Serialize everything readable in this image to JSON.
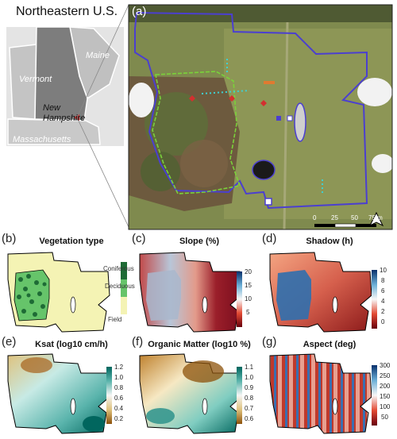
{
  "inset": {
    "title": "Northeastern U.S.",
    "states": [
      "Vermont",
      "Maine",
      "New Hampshire",
      "Massachusetts"
    ]
  },
  "panel_a": {
    "letter": "(a)",
    "scale_ticks": [
      "0",
      "25",
      "50",
      "75 m"
    ],
    "north_arrow": "north-arrow-icon"
  },
  "panels": [
    {
      "letter": "(b)",
      "title": "Vegetation type",
      "legend": [
        "Coniferous",
        "Deciduous",
        "Field"
      ]
    },
    {
      "letter": "(c)",
      "title": "Slope (%)",
      "ticks": [
        "20",
        "15",
        "10",
        "5"
      ]
    },
    {
      "letter": "(d)",
      "title": "Shadow (h)",
      "ticks": [
        "10",
        "8",
        "6",
        "4",
        "2",
        "0"
      ]
    },
    {
      "letter": "(e)",
      "title": "Ksat (log10 cm/h)",
      "ticks": [
        "1.2",
        "1.0",
        "0.8",
        "0.6",
        "0.4",
        "0.2"
      ]
    },
    {
      "letter": "(f)",
      "title": "Organic Matter (log10 %)",
      "ticks": [
        "1.1",
        "1.0",
        "0.9",
        "0.8",
        "0.7",
        "0.6"
      ]
    },
    {
      "letter": "(g)",
      "title": "Aspect (deg)",
      "ticks": [
        "300",
        "250",
        "200",
        "150",
        "100",
        "50"
      ]
    }
  ],
  "colors": {
    "boundary": "#4b3fd0",
    "forest_outline": "#7ad23a",
    "coniferous": "#1e6b35",
    "deciduous": "#66c46a",
    "field": "#f4f3b4"
  }
}
